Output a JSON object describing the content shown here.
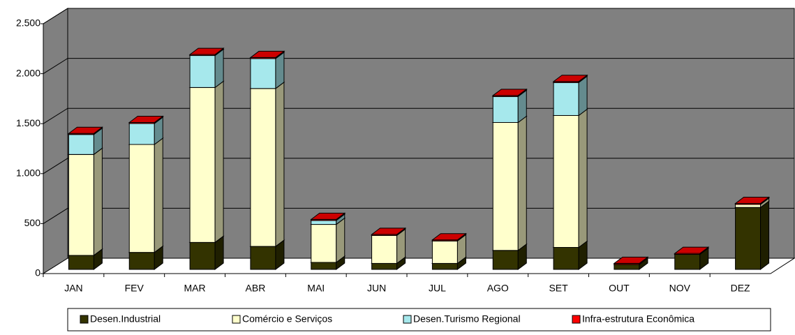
{
  "chart_data": {
    "type": "bar3d_stacked",
    "categories": [
      "JAN",
      "FEV",
      "MAR",
      "ABR",
      "MAI",
      "JUN",
      "JUL",
      "AGO",
      "SET",
      "OUT",
      "NOV",
      "DEZ"
    ],
    "series": [
      {
        "name": "Desen.Industrial",
        "color": "#333300",
        "values": [
          140,
          170,
          270,
          230,
          70,
          60,
          60,
          190,
          220,
          50,
          150,
          620
        ]
      },
      {
        "name": "Comércio e Serviços",
        "color": "#ffffcc",
        "values": [
          1010,
          1080,
          1550,
          1580,
          380,
          280,
          225,
          1280,
          1320,
          0,
          0,
          30
        ]
      },
      {
        "name": "Desen.Turismo Regional",
        "color": "#a6e8ec",
        "values": [
          200,
          210,
          320,
          300,
          40,
          0,
          0,
          260,
          330,
          0,
          0,
          0
        ]
      },
      {
        "name": "Infra-estrutura Econômica",
        "color": "#ff0000",
        "values": [
          10,
          10,
          10,
          10,
          10,
          10,
          10,
          10,
          10,
          10,
          10,
          10
        ]
      }
    ],
    "ylim": [
      0,
      2500
    ],
    "yticks": [
      0,
      500,
      {
        "value": 1000,
        "label": "1.000"
      },
      {
        "value": 1500,
        "label": "1.500"
      },
      {
        "value": 2000,
        "label": "2.000"
      },
      {
        "value": 2500,
        "label": "2.500"
      }
    ],
    "grid": true
  }
}
